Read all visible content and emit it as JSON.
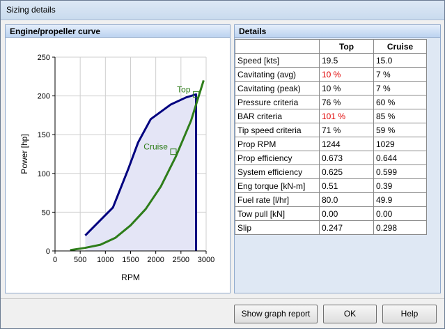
{
  "window": {
    "title": "Sizing details"
  },
  "chart_panel": {
    "title": "Engine/propeller curve"
  },
  "details_panel": {
    "title": "Details",
    "columns": [
      "",
      "Top",
      "Cruise"
    ],
    "rows": [
      {
        "label": "Speed [kts]",
        "top": "19.5",
        "cruise": "15.0"
      },
      {
        "label": "Cavitating (avg)",
        "top": "10 %",
        "cruise": "7 %",
        "top_alert": true
      },
      {
        "label": "Cavitating (peak)",
        "top": "10 %",
        "cruise": "7 %"
      },
      {
        "label": "Pressure criteria",
        "top": "76 %",
        "cruise": "60 %"
      },
      {
        "label": "BAR criteria",
        "top": "101 %",
        "cruise": "85 %",
        "top_alert": true
      },
      {
        "label": "Tip speed criteria",
        "top": "71 %",
        "cruise": "59 %"
      },
      {
        "label": "Prop RPM",
        "top": "1244",
        "cruise": "1029"
      },
      {
        "label": "Prop efficiency",
        "top": "0.673",
        "cruise": "0.644"
      },
      {
        "label": "System efficiency",
        "top": "0.625",
        "cruise": "0.599"
      },
      {
        "label": "Eng torque [kN-m]",
        "top": "0.51",
        "cruise": "0.39"
      },
      {
        "label": "Fuel rate [l/hr]",
        "top": "80.0",
        "cruise": "49.9"
      },
      {
        "label": "Tow pull [kN]",
        "top": "0.00",
        "cruise": "0.00"
      },
      {
        "label": "Slip",
        "top": "0.247",
        "cruise": "0.298"
      }
    ],
    "alert_color": "#e00000"
  },
  "buttons": {
    "graph_report": "Show graph report",
    "ok": "OK",
    "help": "Help"
  },
  "chart_data": {
    "type": "line",
    "xlabel": "RPM",
    "ylabel": "Power [hp]",
    "xlim": [
      0,
      3000
    ],
    "ylim": [
      0,
      250
    ],
    "xticks": [
      0,
      500,
      1000,
      1500,
      2000,
      2500,
      3000
    ],
    "yticks": [
      0,
      50,
      100,
      150,
      200,
      250
    ],
    "grid": true,
    "series": [
      {
        "color": "#00007f",
        "x": [
          600,
          1150,
          1450,
          1650,
          1900,
          2300,
          2600,
          2800,
          2800
        ],
        "y": [
          20,
          56,
          105,
          140,
          170,
          189,
          198,
          202,
          0
        ]
      },
      {
        "color": "#2e7d1a",
        "x": [
          300,
          600,
          900,
          1200,
          1500,
          1800,
          2100,
          2400,
          2700,
          2950
        ],
        "y": [
          1,
          4,
          8,
          17,
          33,
          54,
          83,
          122,
          168,
          220
        ]
      }
    ],
    "points": [
      {
        "label": "Top",
        "x": 2800,
        "y": 202
      },
      {
        "label": "Cruise",
        "x": 2350,
        "y": 128
      }
    ]
  }
}
